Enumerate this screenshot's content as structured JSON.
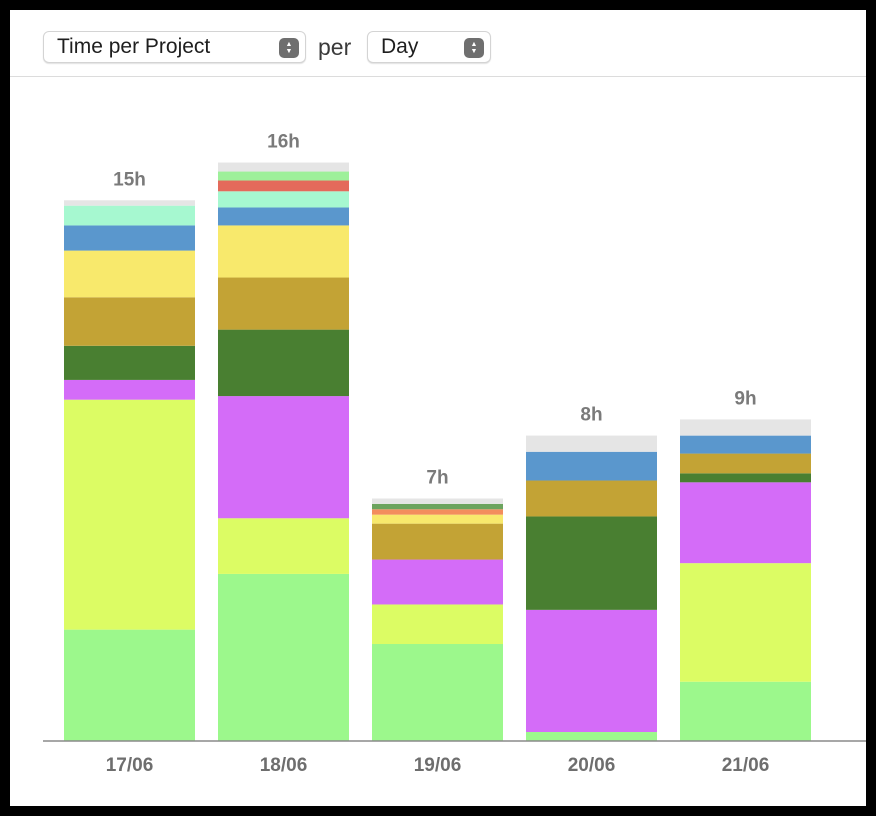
{
  "toolbar": {
    "metric_value": "Time per Project",
    "per_label": "per",
    "period_value": "Day"
  },
  "chart_data": {
    "type": "bar",
    "stacked": true,
    "categories": [
      "17/06",
      "18/06",
      "19/06",
      "20/06",
      "21/06"
    ],
    "totals_labels": [
      "15h",
      "16h",
      "7h",
      "8h",
      "9h"
    ],
    "series": [
      {
        "color": "#9cf88c",
        "values": [
          3.1,
          4.65,
          2.7,
          0.25,
          1.65
        ]
      },
      {
        "color": "#dcfc64",
        "values": [
          6.4,
          1.55,
          1.1,
          0,
          3.3
        ]
      },
      {
        "color": "#d46cf8",
        "values": [
          0.55,
          3.4,
          1.25,
          3.4,
          2.25
        ]
      },
      {
        "color": "#497f31",
        "values": [
          0.95,
          1.85,
          0,
          2.6,
          0.25
        ]
      },
      {
        "color": "#c3a335",
        "values": [
          1.35,
          1.45,
          1.0,
          1.0,
          0.55
        ]
      },
      {
        "color": "#f8e96c",
        "values": [
          1.3,
          1.45,
          0.25,
          0,
          0
        ]
      },
      {
        "color": "#5a97cd",
        "values": [
          0.7,
          0.5,
          0,
          0.8,
          0.5
        ]
      },
      {
        "color": "#a6f8d0",
        "values": [
          0.55,
          0.45,
          0,
          0,
          0
        ]
      },
      {
        "color": "#f38d5d",
        "values": [
          0,
          0,
          0.15,
          0,
          0
        ]
      },
      {
        "color": "#e46a5b",
        "values": [
          0,
          0.3,
          0,
          0,
          0
        ]
      },
      {
        "color": "#9ef09a",
        "values": [
          0,
          0.25,
          0,
          0,
          0
        ]
      },
      {
        "color": "#6ca45e",
        "values": [
          0,
          0,
          0.15,
          0,
          0
        ]
      },
      {
        "color": "#e5e5e5",
        "values": [
          0.15,
          0.25,
          0.15,
          0.45,
          0.45
        ]
      }
    ],
    "ylim": [
      0,
      16.7
    ],
    "grid": false,
    "legend": "none"
  }
}
